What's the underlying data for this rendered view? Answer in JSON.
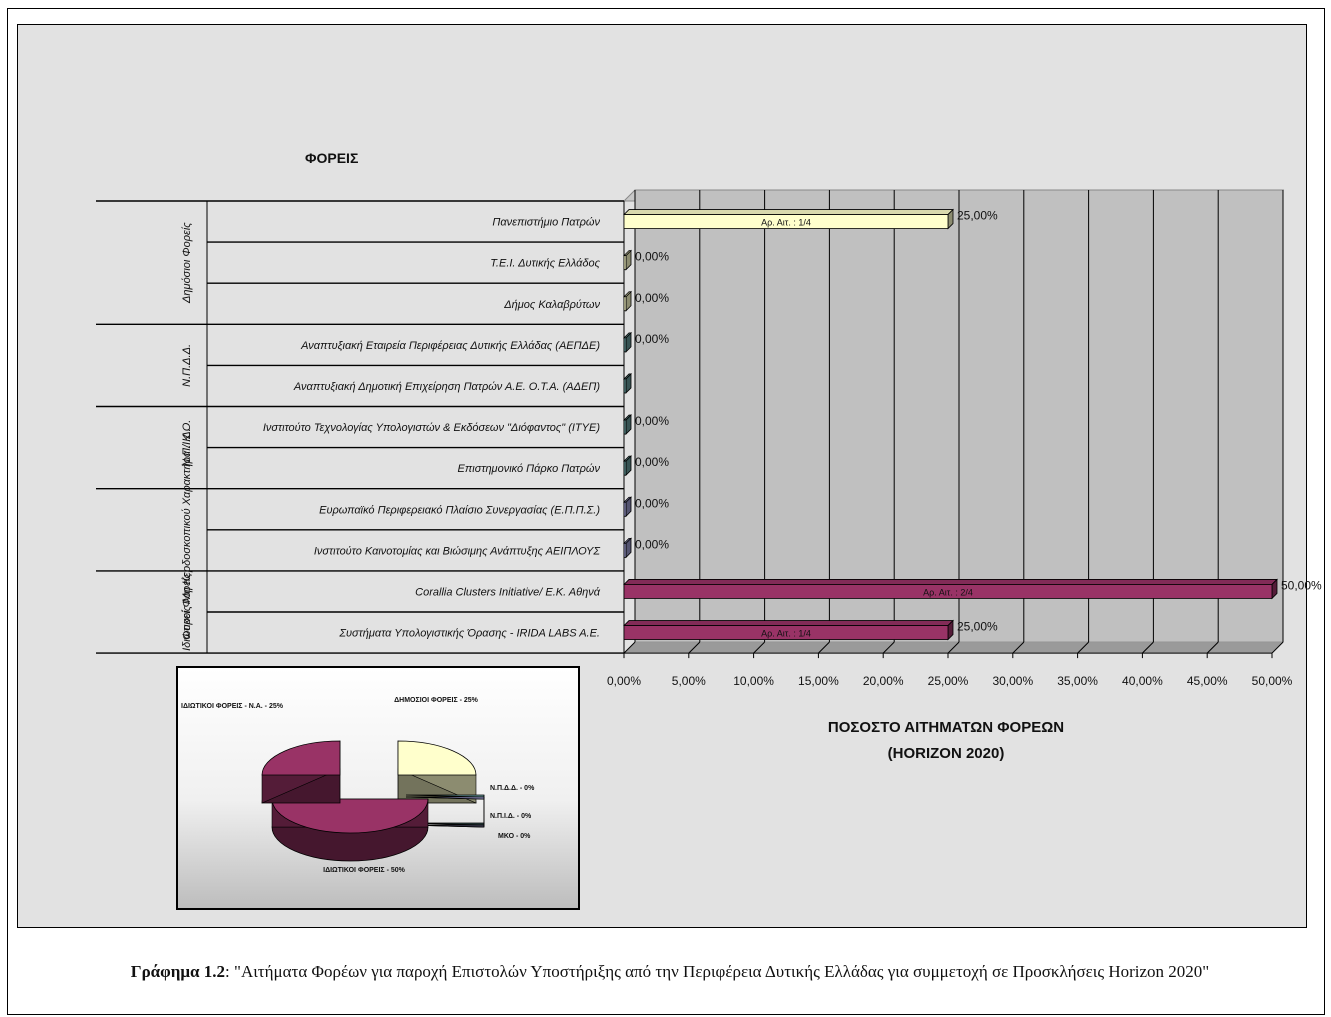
{
  "chart_data": [
    {
      "type": "bar",
      "orientation": "horizontal",
      "ylabel": "ΦΟΡΕΙΣ",
      "title": "ΠΟΣΟΣΤΟ ΑΙΤΗΜΑΤΩΝ ΦΟΡΕΩΝ",
      "subtitle": "(HORIZON 2020)",
      "xlim": [
        0,
        50
      ],
      "x_ticks": [
        "0,00%",
        "5,00%",
        "10,00%",
        "15,00%",
        "20,00%",
        "25,00%",
        "30,00%",
        "35,00%",
        "40,00%",
        "45,00%",
        "50,00%"
      ],
      "groups": [
        {
          "label": "Δημόσιοι Φορείς",
          "rows": 3
        },
        {
          "label": "Ν.Π.Δ.Δ.",
          "rows": 2
        },
        {
          "label": "Ν.Π.Ι.Δ.",
          "rows": 2
        },
        {
          "label": "Φορείς Μη Κερδοσκοπικού Χαρακτήρα / Κ.Ο.",
          "rows": 2
        },
        {
          "label": "Ιδιωτικοί Φορείς",
          "rows": 2
        }
      ],
      "bars": [
        {
          "category": "Πανεπιστήμιο Πατρών",
          "value": 25,
          "value_label": "25,00%",
          "bar_text": "Αρ. Αιτ. : 1/4",
          "color": "#ffffcc"
        },
        {
          "category": "Τ.Ε.Ι. Δυτικής Ελλάδος",
          "value": 0,
          "value_label": "0,00%",
          "bar_text": "",
          "color": "#ffffcc"
        },
        {
          "category": "Δήμος Καλαβρύτων",
          "value": 0,
          "value_label": "0,00%",
          "bar_text": "",
          "color": "#ffffcc"
        },
        {
          "category": "Αναπτυξιακή Εταιρεία Περιφέρειας Δυτικής Ελλάδας (ΑΕΠΔΕ)",
          "value": 0,
          "value_label": "0,00%",
          "bar_text": "",
          "color": "#669999"
        },
        {
          "category": "Αναπτυξιακή Δημοτική Επιχείρηση Πατρών Α.Ε. Ο.Τ.Α. (ΑΔΕΠ)",
          "value": 0,
          "value_label": "",
          "bar_text": "",
          "color": "#669999"
        },
        {
          "category": "Ινστιτούτο Τεχνολογίας Υπολογιστών & Εκδόσεων \"Διόφαντος\" (ΙΤΥΕ)",
          "value": 0,
          "value_label": "0,00%",
          "bar_text": "",
          "color": "#669999"
        },
        {
          "category": "Επιστημονικό Πάρκο Πατρών",
          "value": 0,
          "value_label": "0,00%",
          "bar_text": "",
          "color": "#669999"
        },
        {
          "category": "Ευρωπαϊκό Περιφερειακό Πλαίσιο Συνεργασίας (Ε.Π.Π.Σ.)",
          "value": 0,
          "value_label": "0,00%",
          "bar_text": "",
          "color": "#9999cc"
        },
        {
          "category": "Ινστιτούτο Καινοτομίας και Βιώσιμης Ανάπτυξης ΑΕΙΠΛΟΥΣ",
          "value": 0,
          "value_label": "0,00%",
          "bar_text": "",
          "color": "#9999cc"
        },
        {
          "category": "Corallia Clusters Initiative/ Ε.Κ. Αθηνά",
          "value": 50,
          "value_label": "50,00%",
          "bar_text": "Αρ. Αιτ. : 2/4",
          "color": "#993366"
        },
        {
          "category": "Συστήματα Υπολογιστικής Όρασης - IRIDA LABS A.E.",
          "value": 25,
          "value_label": "25,00%",
          "bar_text": "Αρ. Αιτ. : 1/4",
          "color": "#993366"
        }
      ]
    },
    {
      "type": "pie",
      "slices": [
        {
          "label": "ΔΗΜΟΣΙΟΙ ΦΟΡΕΙΣ - 25%",
          "value": 25,
          "color": "#ffffcc"
        },
        {
          "label": "Ν.Π.Δ.Δ. - 0%",
          "value": 0,
          "color": "#669999"
        },
        {
          "label": "Ν.Π.Ι.Δ. - 0%",
          "value": 0,
          "color": "#669999"
        },
        {
          "label": "ΜΚΟ - 0%",
          "value": 0,
          "color": "#9999cc"
        },
        {
          "label": "ΙΔΙΩΤΙΚΟΙ ΦΟΡΕΙΣ - 50%",
          "value": 50,
          "color": "#993366"
        },
        {
          "label": "ΙΔΙΩΤΙΚΟΙ ΦΟΡΕΙΣ - Ν.Α. - 25%",
          "value": 25,
          "color": "#993366"
        }
      ]
    }
  ],
  "caption": {
    "label": "Γράφημα 1.2",
    "text": ": \"Αιτήματα Φορέων για παροχή Επιστολών Υποστήριξης από την Περιφέρεια Δυτικής Ελλάδας για συμμετοχή σε Προσκλήσεις Horizon 2020\""
  }
}
